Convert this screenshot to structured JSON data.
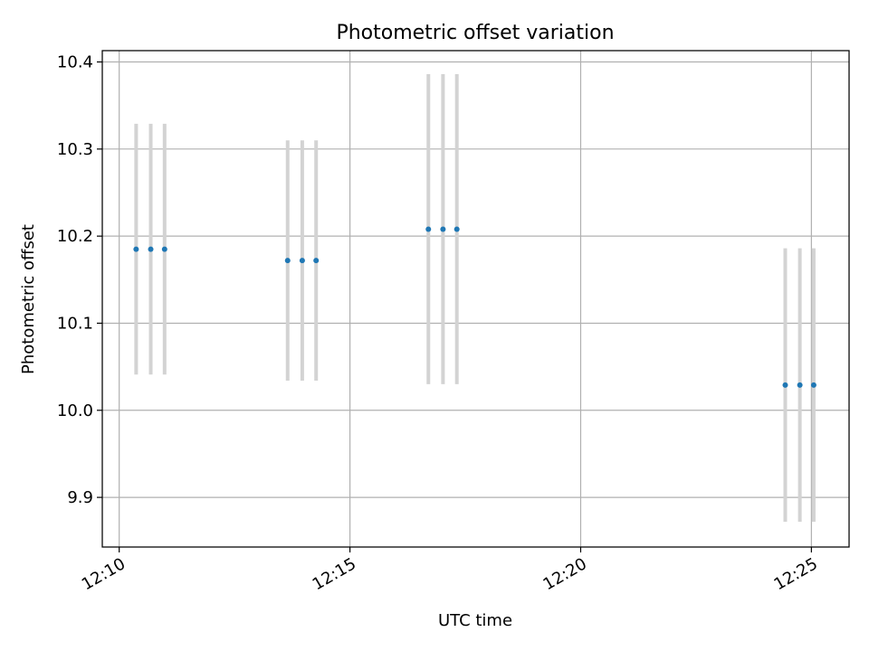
{
  "chart_data": {
    "type": "scatter",
    "title": "Photometric offset variation",
    "xlabel": "UTC time",
    "ylabel": "Photometric offset",
    "x_axis": {
      "kind": "time",
      "range": [
        "12:09:38",
        "12:25:49"
      ],
      "ticks": [
        "12:10",
        "12:15",
        "12:20",
        "12:25"
      ]
    },
    "y_axis": {
      "range": [
        9.843,
        10.413
      ],
      "ticks": [
        "9.9",
        "10.0",
        "10.1",
        "10.2",
        "10.3",
        "10.4"
      ]
    },
    "grid": true,
    "colors": {
      "points": "#1f77b4",
      "error_bars": "#d3d3d3",
      "grid": "#b0b0b0"
    },
    "points": [
      {
        "x": "12:10:22",
        "y": 10.185,
        "err": 0.144
      },
      {
        "x": "12:10:41",
        "y": 10.185,
        "err": 0.144
      },
      {
        "x": "12:10:59",
        "y": 10.185,
        "err": 0.144
      },
      {
        "x": "12:13:39",
        "y": 10.172,
        "err": 0.138
      },
      {
        "x": "12:13:58",
        "y": 10.172,
        "err": 0.138
      },
      {
        "x": "12:14:16",
        "y": 10.172,
        "err": 0.138
      },
      {
        "x": "12:16:42",
        "y": 10.208,
        "err": 0.178
      },
      {
        "x": "12:17:01",
        "y": 10.208,
        "err": 0.178
      },
      {
        "x": "12:17:19",
        "y": 10.208,
        "err": 0.178
      },
      {
        "x": "12:24:26",
        "y": 10.029,
        "err": 0.157
      },
      {
        "x": "12:24:45",
        "y": 10.029,
        "err": 0.157
      },
      {
        "x": "12:25:03",
        "y": 10.029,
        "err": 0.157
      }
    ]
  }
}
